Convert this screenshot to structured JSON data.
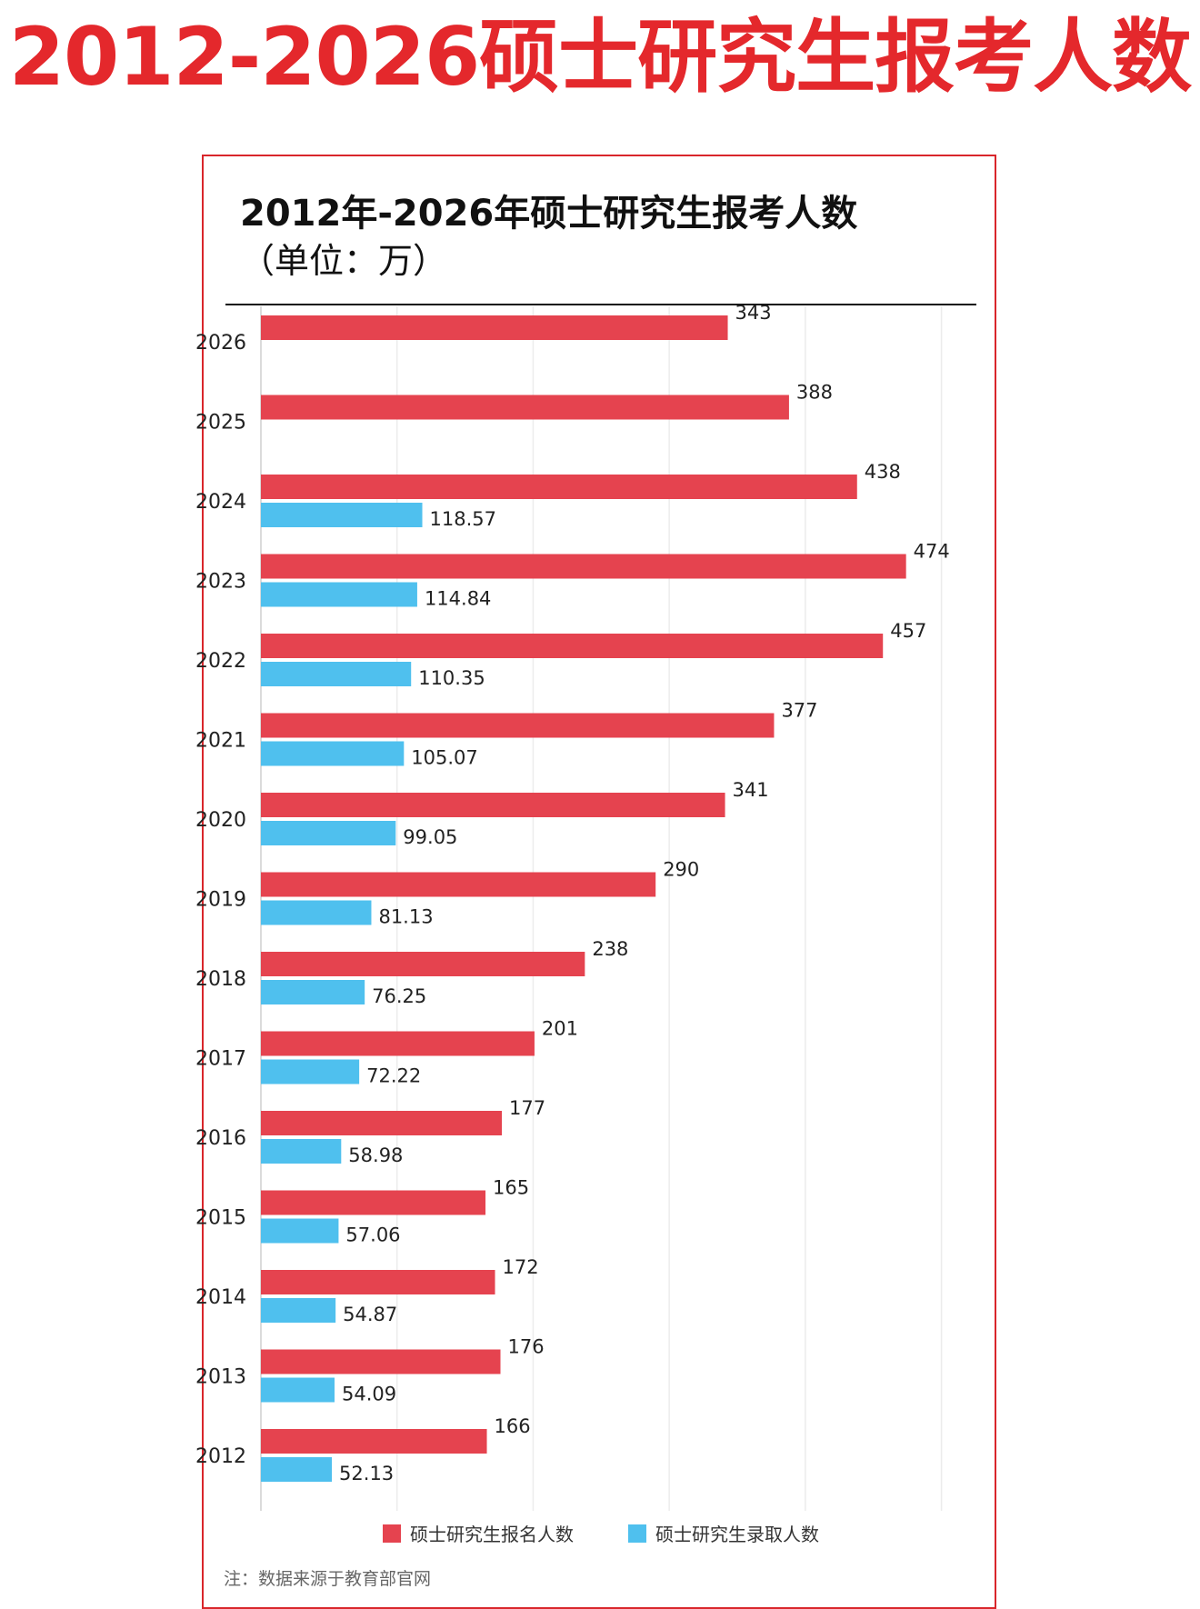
{
  "banner": {
    "text": "2012-2026硕士研究生报考人数"
  },
  "chart_data": {
    "type": "bar",
    "orientation": "horizontal",
    "title": "2012年-2026年硕士研究生报考人数",
    "subtitle": "（单位：万）",
    "categories": [
      "2026",
      "2025",
      "2024",
      "2023",
      "2022",
      "2021",
      "2020",
      "2019",
      "2018",
      "2017",
      "2016",
      "2015",
      "2014",
      "2013",
      "2012"
    ],
    "series": [
      {
        "name": "硕士研究生报名人数",
        "color": "#e5434f",
        "values": [
          343,
          388,
          438,
          474,
          457,
          377,
          341,
          290,
          238,
          201,
          177,
          165,
          172,
          176,
          166
        ],
        "labels": [
          "343",
          "388",
          "438",
          "474",
          "457",
          "377",
          "341",
          "290",
          "238",
          "201",
          "177",
          "165",
          "172",
          "176",
          "166"
        ]
      },
      {
        "name": "硕士研究生录取人数",
        "color": "#4fc0ee",
        "values": [
          null,
          null,
          118.57,
          114.84,
          110.35,
          105.07,
          99.05,
          81.13,
          76.25,
          72.22,
          58.98,
          57.06,
          54.87,
          54.09,
          52.13
        ],
        "labels": [
          "",
          "",
          "118.57",
          "114.84",
          "110.35",
          "105.07",
          "99.05",
          "81.13",
          "76.25",
          "72.22",
          "58.98",
          "57.06",
          "54.87",
          "54.09",
          "52.13"
        ]
      }
    ],
    "xlim": [
      0,
      500
    ],
    "grid": true,
    "legend": "bottom"
  },
  "note": "注：数据来源于教育部官网"
}
